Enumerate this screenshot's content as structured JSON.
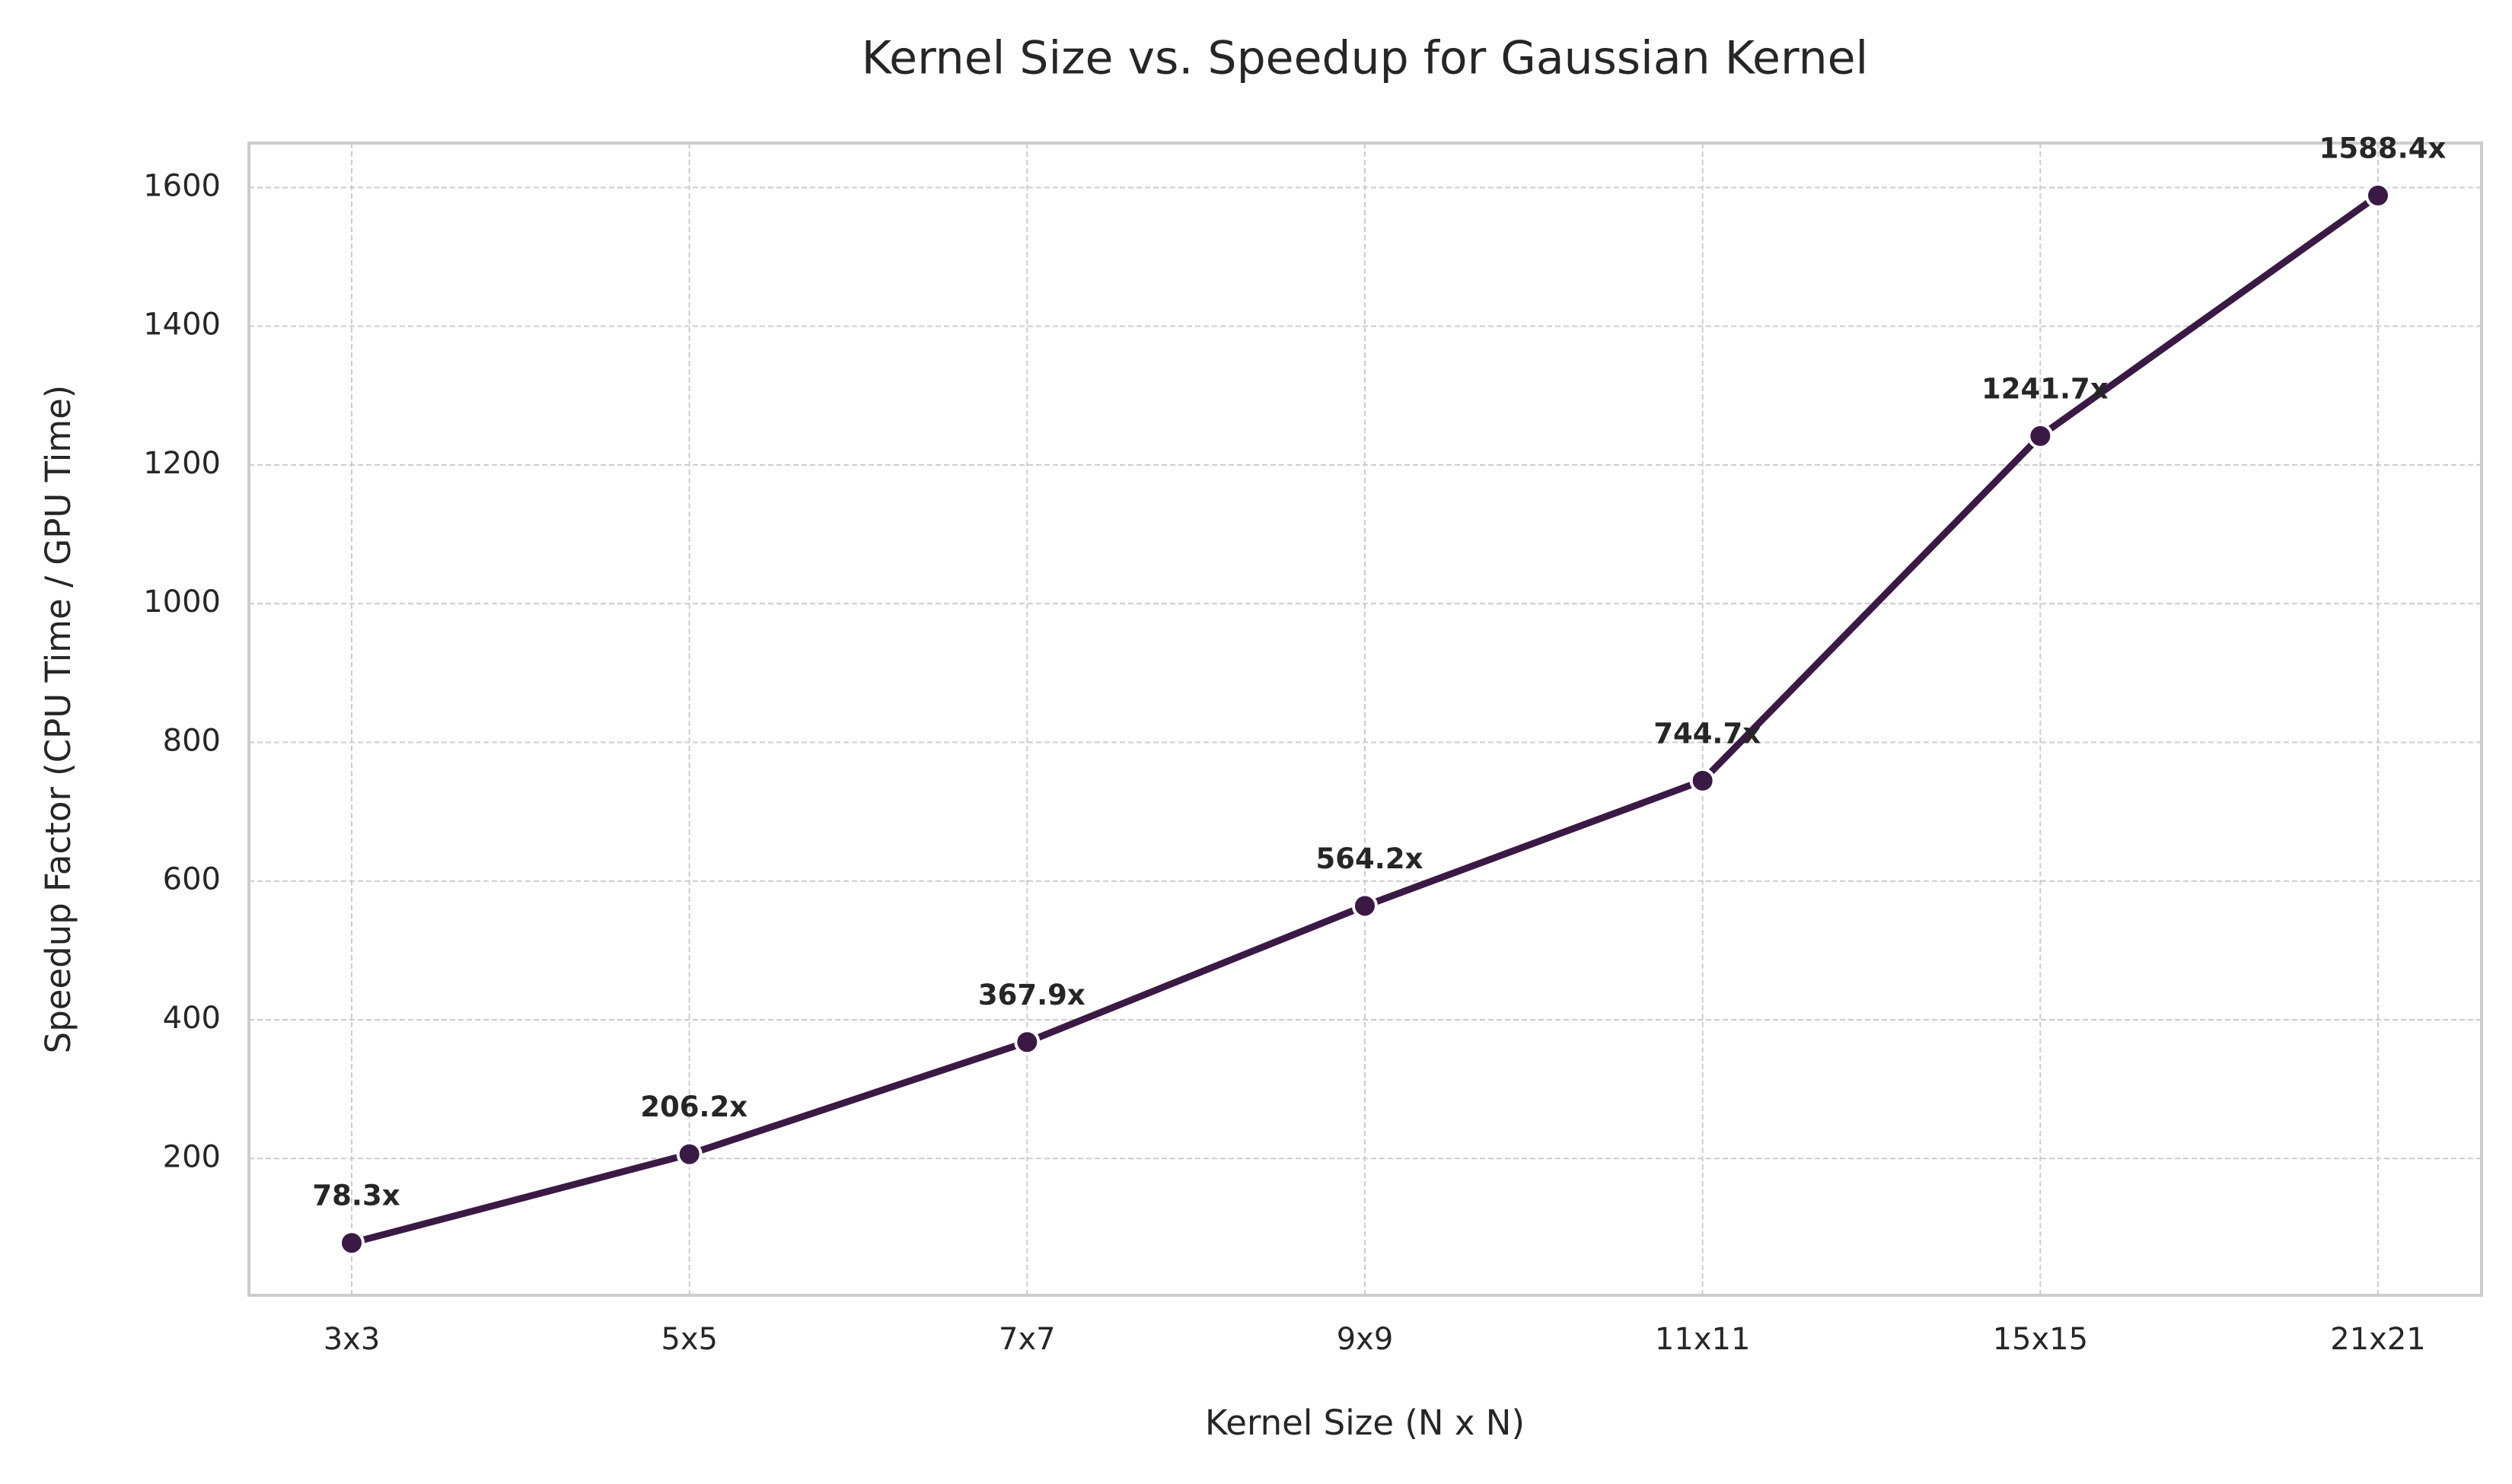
{
  "chart_data": {
    "type": "line",
    "title": "Kernel Size vs. Speedup for Gaussian Kernel",
    "xlabel": "Kernel Size (N x N)",
    "ylabel": "Speedup Factor (CPU Time / GPU Time)",
    "categories": [
      "3x3",
      "5x5",
      "7x7",
      "9x9",
      "11x11",
      "15x15",
      "21x21"
    ],
    "series": [
      {
        "values": [
          78.3,
          206.2,
          367.9,
          564.2,
          744.7,
          1241.7,
          1588.4
        ]
      }
    ],
    "data_labels": [
      "78.3x",
      "206.2x",
      "367.9x",
      "564.2x",
      "744.7x",
      "1241.7x",
      "1588.4x"
    ],
    "yticks": [
      200,
      400,
      600,
      800,
      1000,
      1200,
      1400,
      1600
    ],
    "ylim": [
      2.8,
      1664.0
    ],
    "grid": true,
    "line_color": "#3a1a45",
    "marker_edge_color": "#ffffff",
    "frame_color": "#cccccc",
    "grid_color": "#cccccc"
  }
}
